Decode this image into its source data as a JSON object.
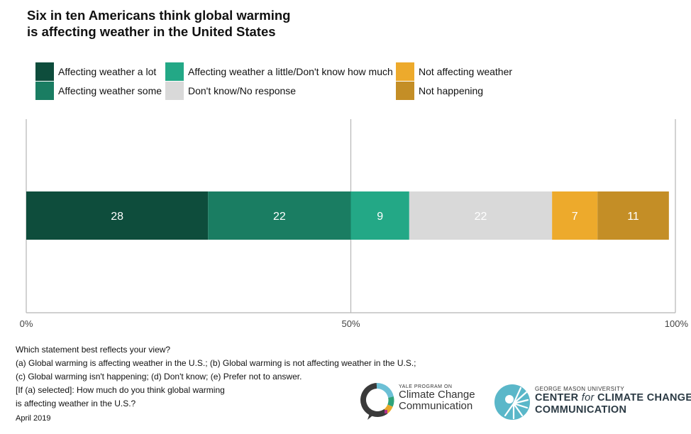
{
  "title_line1": "Six in ten Americans think global warming",
  "title_line2": "is affecting weather in the United States",
  "chart_data": {
    "type": "bar",
    "orientation": "horizontal",
    "stacked": true,
    "series": [
      {
        "name": "Affecting weather a lot",
        "values": [
          28
        ],
        "color": "#0e4d3c"
      },
      {
        "name": "Affecting weather some",
        "values": [
          22
        ],
        "color": "#1a7d62"
      },
      {
        "name": "Affecting weather a little/Don't know how much",
        "values": [
          9
        ],
        "color": "#23a886"
      },
      {
        "name": "Don't know/No response",
        "values": [
          22
        ],
        "color": "#d9d9d9"
      },
      {
        "name": "Not affecting weather",
        "values": [
          7
        ],
        "color": "#edaa2c"
      },
      {
        "name": "Not happening",
        "values": [
          11
        ],
        "color": "#c48e26"
      }
    ],
    "xlim": [
      0,
      100
    ],
    "x_ticks": [
      "0%",
      "50%",
      "100%"
    ],
    "legend_position": "top"
  },
  "question_lines": [
    "Which statement best reflects your view?",
    "(a) Global warming is affecting weather in the U.S.; (b) Global warming is not affecting weather in the U.S.;",
    "(c) Global warming isn't happening; (d) Don't know; (e) Prefer not to answer.",
    "[If (a) selected]: How much do you think global warming",
    "is affecting weather in the U.S.?"
  ],
  "date": "April 2019",
  "logos": {
    "yale_small": "YALE PROGRAM ON",
    "yale_line1": "Climate Change",
    "yale_line2": "Communication",
    "gmu_small": "GEORGE MASON UNIVERSITY",
    "gmu_line1_a": "CENTER",
    "gmu_line1_b": "for",
    "gmu_line1_c": "CLIMATE CHANGE",
    "gmu_line2": "COMMUNICATION"
  }
}
